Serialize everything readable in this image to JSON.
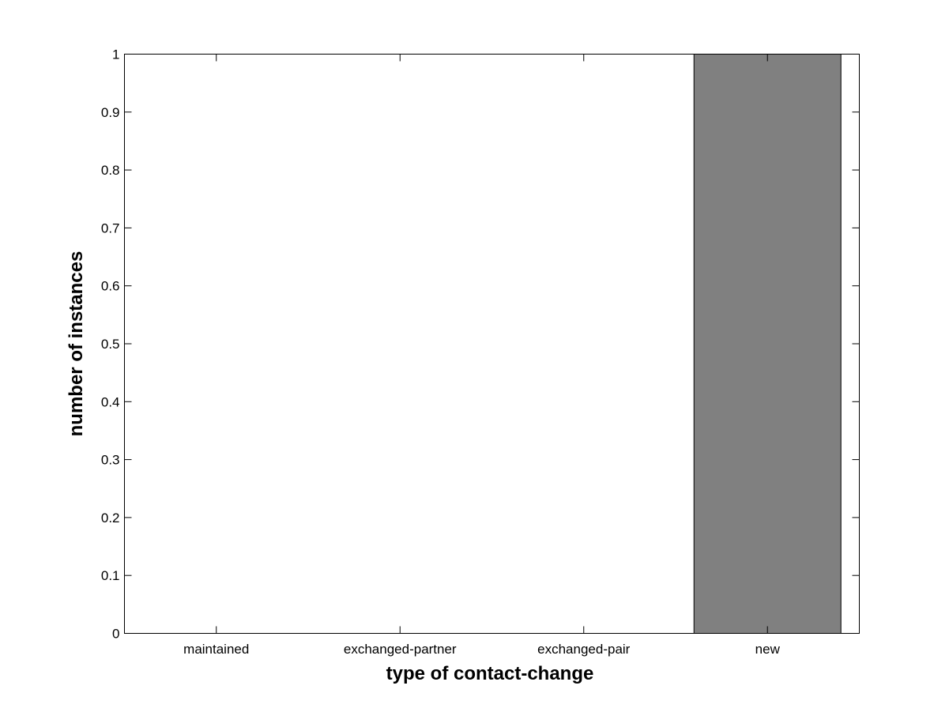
{
  "chart_data": {
    "type": "bar",
    "categories": [
      "maintained",
      "exchanged-partner",
      "exchanged-pair",
      "new"
    ],
    "values": [
      0,
      0,
      0,
      1
    ],
    "title": "",
    "xlabel": "type of contact-change",
    "ylabel": "number of instances",
    "ylim": [
      0,
      1
    ],
    "xlim": [
      0.5,
      4.5
    ],
    "yticks": [
      0,
      0.1,
      0.2,
      0.3,
      0.4,
      0.5,
      0.6,
      0.7,
      0.8,
      0.9,
      1
    ],
    "ytick_labels": [
      "0",
      "0.1",
      "0.2",
      "0.3",
      "0.4",
      "0.5",
      "0.6",
      "0.7",
      "0.8",
      "0.9",
      "1"
    ],
    "bar_width": 0.8,
    "bar_color": "#808080",
    "grid": false,
    "legend": "none"
  }
}
